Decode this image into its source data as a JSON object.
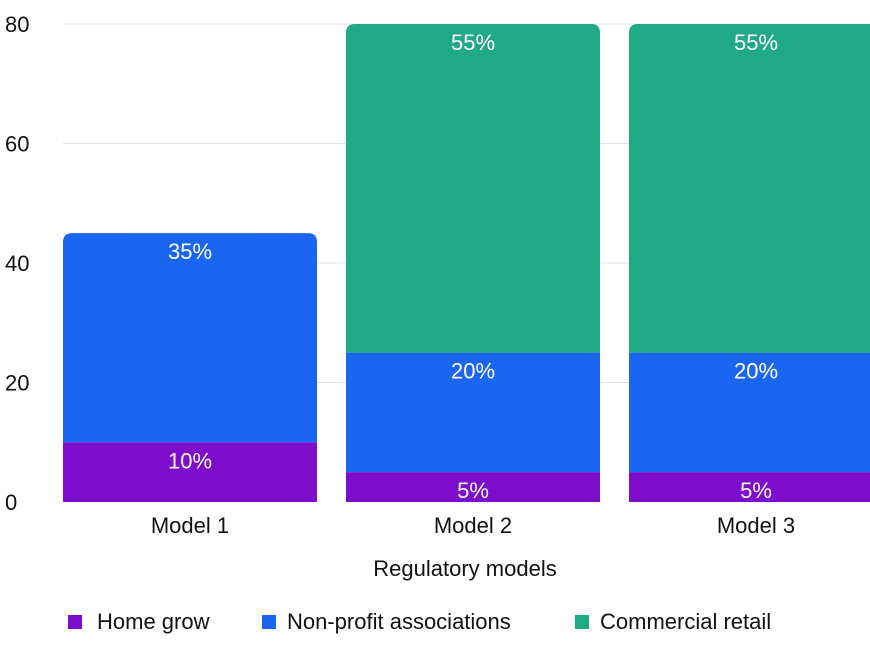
{
  "chart_data": {
    "type": "bar",
    "stacked": true,
    "categories": [
      "Model 1",
      "Model 2",
      "Model 3"
    ],
    "xlabel": "Regulatory models",
    "ylabel": "",
    "title": "",
    "ylim": [
      0,
      80
    ],
    "yticks": [
      0,
      20,
      40,
      60,
      80
    ],
    "grid": true,
    "legend_position": "bottom",
    "series": [
      {
        "name": "Home grow",
        "color": "#7e0ccb",
        "values": [
          10,
          5,
          5
        ],
        "labels": [
          "10%",
          "5%",
          "5%"
        ]
      },
      {
        "name": "Non-profit associations",
        "color": "#1a66f2",
        "values": [
          35,
          20,
          20
        ],
        "labels": [
          "35%",
          "20%",
          "20%"
        ]
      },
      {
        "name": "Commercial retail",
        "color": "#1fa985",
        "values": [
          0,
          55,
          55
        ],
        "labels": [
          "",
          "55%",
          "55%"
        ]
      }
    ]
  }
}
